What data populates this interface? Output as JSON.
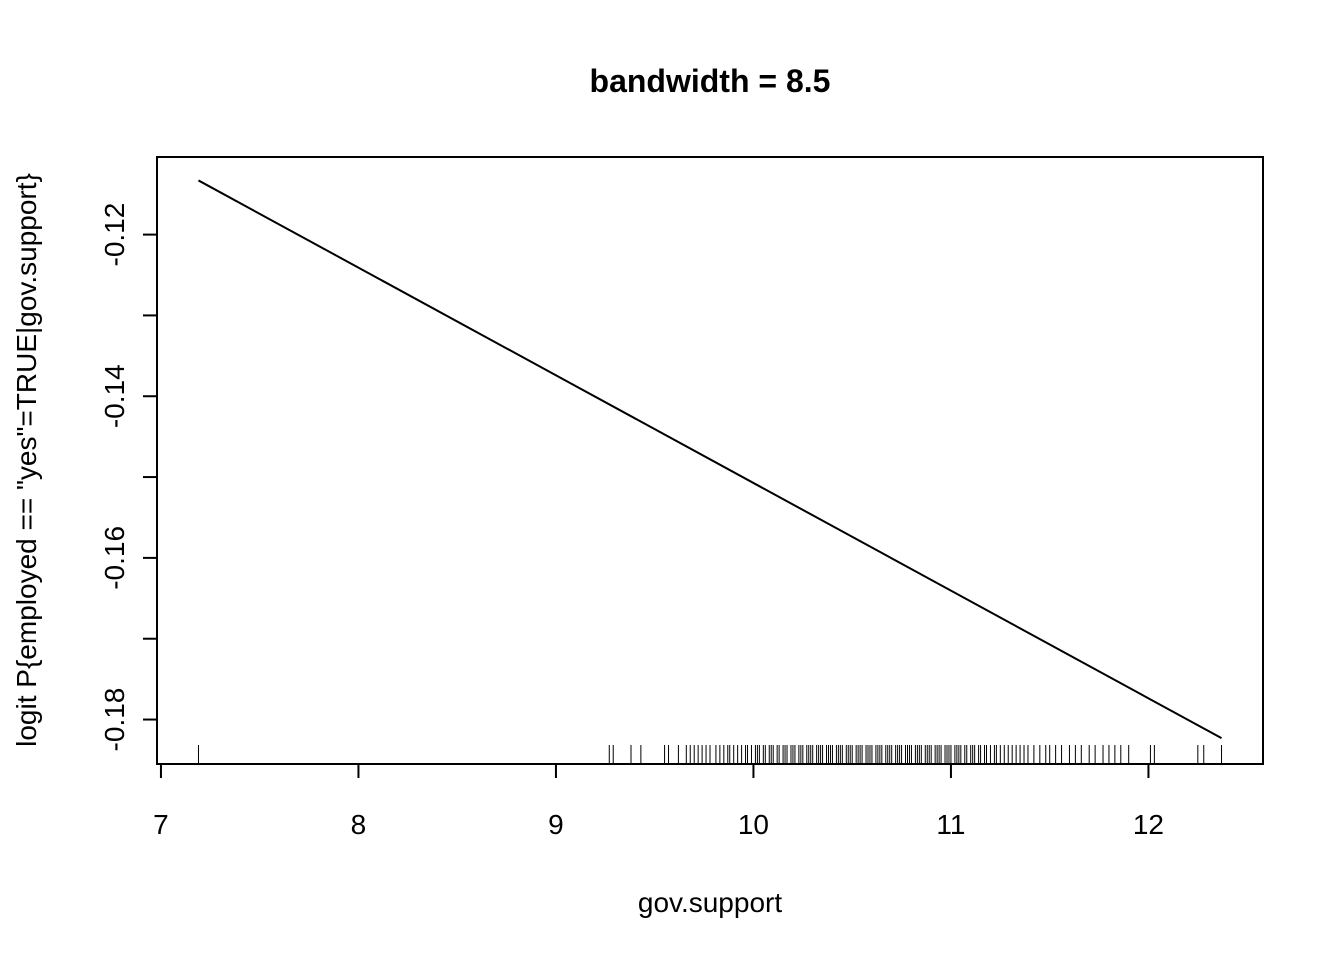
{
  "chart_data": {
    "type": "line",
    "title": "bandwidth = 8.5",
    "xlabel": "gov.support",
    "ylabel": "logit P{employed == \"yes\"=TRUE|gov.support}",
    "xlim": [
      6.98,
      12.58
    ],
    "ylim": [
      -0.1855,
      -0.1104
    ],
    "x_ticks": [
      7,
      8,
      9,
      10,
      11,
      12
    ],
    "x_tick_labels": [
      "7",
      "8",
      "9",
      "10",
      "11",
      "12"
    ],
    "y_ticks": [
      -0.12,
      -0.13,
      -0.14,
      -0.15,
      -0.16,
      -0.17,
      -0.18
    ],
    "y_tick_labels": [
      "-0.12",
      "",
      "-0.14",
      "",
      "-0.16",
      "",
      "-0.18"
    ],
    "series": [
      {
        "x": [
          7.19,
          12.37
        ],
        "y": [
          -0.1133,
          -0.1823
        ]
      }
    ],
    "rug": [
      7.19,
      9.27,
      9.29,
      9.38,
      9.43,
      9.55,
      9.57,
      9.62,
      9.66,
      9.68,
      9.7,
      9.72,
      9.74,
      9.76,
      9.78,
      9.81,
      9.83,
      9.85,
      9.87,
      9.88,
      9.9,
      9.92,
      9.94,
      9.96,
      9.97,
      9.99,
      10.01,
      10.02,
      10.03,
      10.05,
      10.06,
      10.08,
      10.09,
      10.1,
      10.12,
      10.13,
      10.15,
      10.16,
      10.17,
      10.19,
      10.2,
      10.21,
      10.23,
      10.24,
      10.25,
      10.27,
      10.28,
      10.29,
      10.3,
      10.32,
      10.33,
      10.34,
      10.35,
      10.37,
      10.38,
      10.39,
      10.4,
      10.42,
      10.43,
      10.44,
      10.45,
      10.47,
      10.48,
      10.49,
      10.5,
      10.52,
      10.53,
      10.54,
      10.55,
      10.57,
      10.58,
      10.59,
      10.6,
      10.62,
      10.63,
      10.64,
      10.65,
      10.67,
      10.68,
      10.69,
      10.7,
      10.72,
      10.73,
      10.74,
      10.75,
      10.77,
      10.78,
      10.79,
      10.8,
      10.82,
      10.83,
      10.84,
      10.85,
      10.87,
      10.88,
      10.89,
      10.9,
      10.92,
      10.93,
      10.94,
      10.95,
      10.97,
      10.98,
      10.99,
      11.0,
      11.02,
      11.03,
      11.04,
      11.05,
      11.07,
      11.08,
      11.1,
      11.11,
      11.12,
      11.14,
      11.15,
      11.17,
      11.18,
      11.2,
      11.22,
      11.23,
      11.25,
      11.27,
      11.29,
      11.31,
      11.33,
      11.35,
      11.37,
      11.39,
      11.42,
      11.45,
      11.48,
      11.5,
      11.53,
      11.56,
      11.6,
      11.63,
      11.66,
      11.7,
      11.73,
      11.77,
      11.8,
      11.83,
      11.86,
      11.9,
      12.01,
      12.03,
      12.25,
      12.28,
      12.37
    ]
  }
}
